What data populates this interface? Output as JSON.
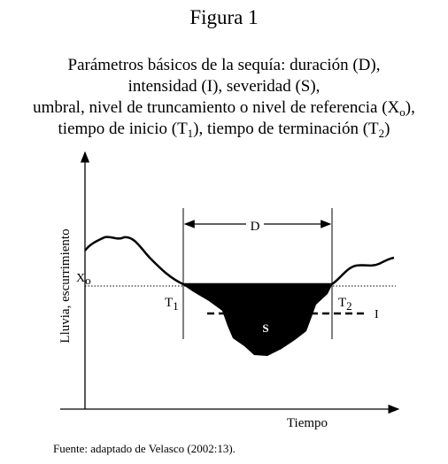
{
  "figure": {
    "title": "Figura 1",
    "caption": [
      [
        "Parámetros básicos de la sequía: duración (D),"
      ],
      [
        "intensidad (I), severidad (S),"
      ],
      [
        "umbral, nivel de truncamiento o nivel de referencia (X",
        {
          "sub": "o"
        },
        "),"
      ],
      [
        "tiempo de inicio (T",
        {
          "sub": "1"
        },
        "), tiempo de terminación (T",
        {
          "sub": "2"
        },
        ")"
      ]
    ],
    "labels": {
      "duration": "D",
      "threshold": {
        "base": "X",
        "sub": "o"
      },
      "start": {
        "base": "T",
        "sub": "1"
      },
      "end": {
        "base": "T",
        "sub": "2"
      },
      "intensity": "I",
      "severity": "S",
      "y_axis": "Lluvia, escurrimiento",
      "x_axis": "Tiempo"
    },
    "source": "Fuente: adaptado de Velasco (2002:13)."
  }
}
